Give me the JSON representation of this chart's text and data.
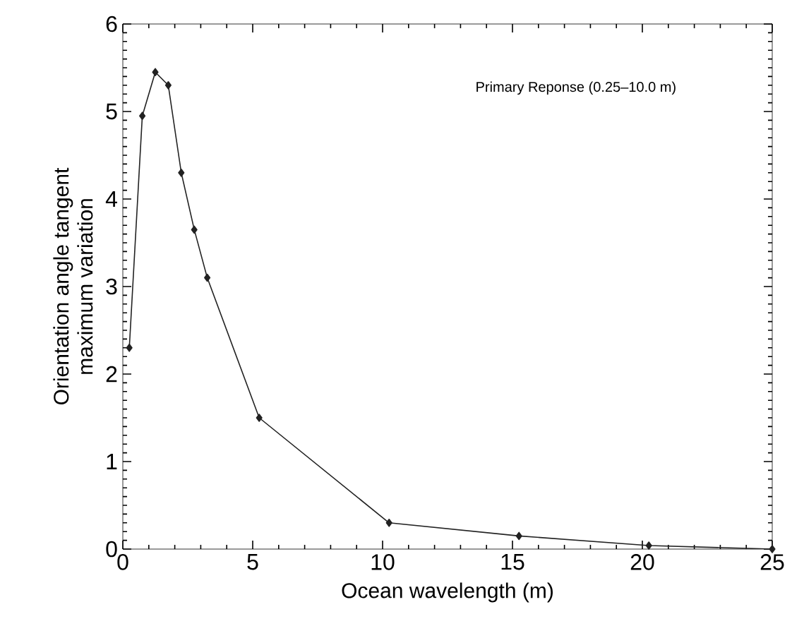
{
  "chart_data": {
    "type": "line",
    "xlabel": "Ocean wavelength (m)",
    "ylabel": "Orientation angle tangent\nmaximum variation",
    "annotations": [
      "Primary Reponse (0.25–10.0 m)"
    ],
    "x": [
      0.25,
      0.75,
      1.25,
      1.75,
      2.25,
      2.75,
      3.25,
      5.25,
      10.25,
      15.25,
      20.25,
      25
    ],
    "series": [
      {
        "color": "#222222",
        "values": [
          2.3,
          4.95,
          5.45,
          5.3,
          4.3,
          3.65,
          3.1,
          1.5,
          0.3,
          0.15,
          0.04,
          0
        ]
      }
    ],
    "xlim": [
      0,
      25
    ],
    "ylim": [
      0,
      6
    ],
    "xticks": [
      0,
      5,
      10,
      15,
      20,
      25
    ],
    "yticks": [
      0,
      1,
      2,
      3,
      4,
      5,
      6
    ],
    "marker": "diamond",
    "line_style": "solid"
  }
}
